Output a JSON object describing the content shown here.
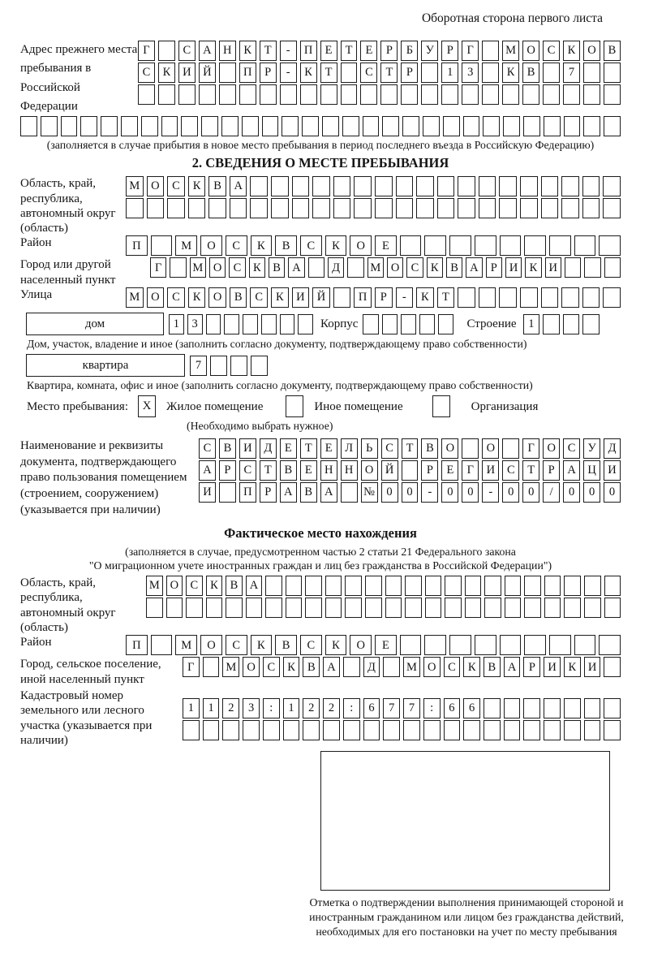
{
  "page_title": "Оборотная сторона первого листа",
  "prev_address": {
    "label": "Адрес прежнего места пребывания в Российской Федерации",
    "rows": [
      {
        "text": "Г САНКТ-ПЕТЕРБУРГ МОСКОВ",
        "count": 24
      },
      {
        "text": "СКИЙ ПР-КТ СТР 13 КВ 7",
        "count": 24
      },
      {
        "text": "",
        "count": 24
      },
      {
        "text": "",
        "count": 30
      }
    ],
    "note": "(заполняется в случае прибытия в новое место пребывания в период последнего въезда в Российскую Федерацию)"
  },
  "section2": {
    "heading": "2. СВЕДЕНИЯ О МЕСТЕ ПРЕБЫВАНИЯ",
    "region": {
      "label": "Область, край, республика, автономный округ (область)",
      "rows": [
        {
          "text": "МОСКВА",
          "count": 24
        },
        {
          "text": "",
          "count": 24
        }
      ]
    },
    "district": {
      "label": "Район",
      "row": {
        "text": "П МОСКВСКОЕ",
        "count": 20
      }
    },
    "city": {
      "label": "Город или другой населенный пункт",
      "row": {
        "text": "Г МОСКВА Д МОСКВАРИКИ",
        "count": 24
      }
    },
    "street": {
      "label": "Улица",
      "row": {
        "text": "МОСКОВСКИЙ ПР-КТ",
        "count": 24
      }
    },
    "house": {
      "box_label": "дом",
      "cells": {
        "text": "13",
        "count": 8
      },
      "korpus_label": "Корпус",
      "korpus_cells": {
        "text": "",
        "count": 5
      },
      "stroenie_label": "Строение",
      "stroenie_cells": {
        "text": "1",
        "count": 4
      },
      "note": "Дом, участок, владение и иное (заполнить согласно документу, подтверждающему право собственности)"
    },
    "apartment": {
      "box_label": "квартира",
      "cells": {
        "text": "7",
        "count": 4
      },
      "note": "Квартира, комната, офис и иное (заполнить согласно документу, подтверждающему право собственности)"
    },
    "place_type": {
      "label": "Место пребывания:",
      "options": [
        {
          "label": "Жилое помещение",
          "mark": "X"
        },
        {
          "label": "Иное помещение",
          "mark": ""
        },
        {
          "label": "Организация",
          "mark": ""
        }
      ],
      "note": "(Необходимо выбрать нужное)"
    },
    "document": {
      "label": "Наименование и реквизиты документа, подтверждающего право пользования помещением (строением, сооружением) (указывается при наличии)",
      "rows": [
        {
          "text": "СВИДЕТЕЛЬСТВО О ГОСУД",
          "count": 21
        },
        {
          "text": "АРСТВЕННОЙ РЕГИСТРАЦИ",
          "count": 21
        },
        {
          "text": "И ПРАВА №00-00-00/000",
          "count": 21
        }
      ]
    }
  },
  "actual_location": {
    "heading": "Фактическое место нахождения",
    "note_line1": "(заполняется в случае, предусмотренном частью 2 статьи 21 Федерального закона",
    "note_line2": "\"О миграционном учете иностранных граждан и лиц без гражданства в Российской Федерации\")",
    "region": {
      "label": "Область, край, республика, автономный округ (область)",
      "rows": [
        {
          "text": "МОСКВА",
          "count": 24
        },
        {
          "text": "",
          "count": 24
        }
      ]
    },
    "district": {
      "label": "Район",
      "row": {
        "text": "П МОСКВСКОЕ",
        "count": 20
      }
    },
    "city": {
      "label": "Город, сельское поселение, иной населенный пункт",
      "row": {
        "text": "Г МОСКВА Д МОСКВАРИКИ",
        "count": 22
      }
    },
    "cadastral": {
      "label": "Кадастровый номер земельного или лесного участка (указывается при наличии)",
      "rows": [
        {
          "text": "1123:122:677:66",
          "count": 22
        },
        {
          "text": "",
          "count": 22
        }
      ]
    },
    "stamp_caption": "Отметка о подтверждении выполнения принимающей стороной и иностранным гражданином или лицом без гражданства действий, необходимых для его постановки на учет по месту пребывания"
  }
}
